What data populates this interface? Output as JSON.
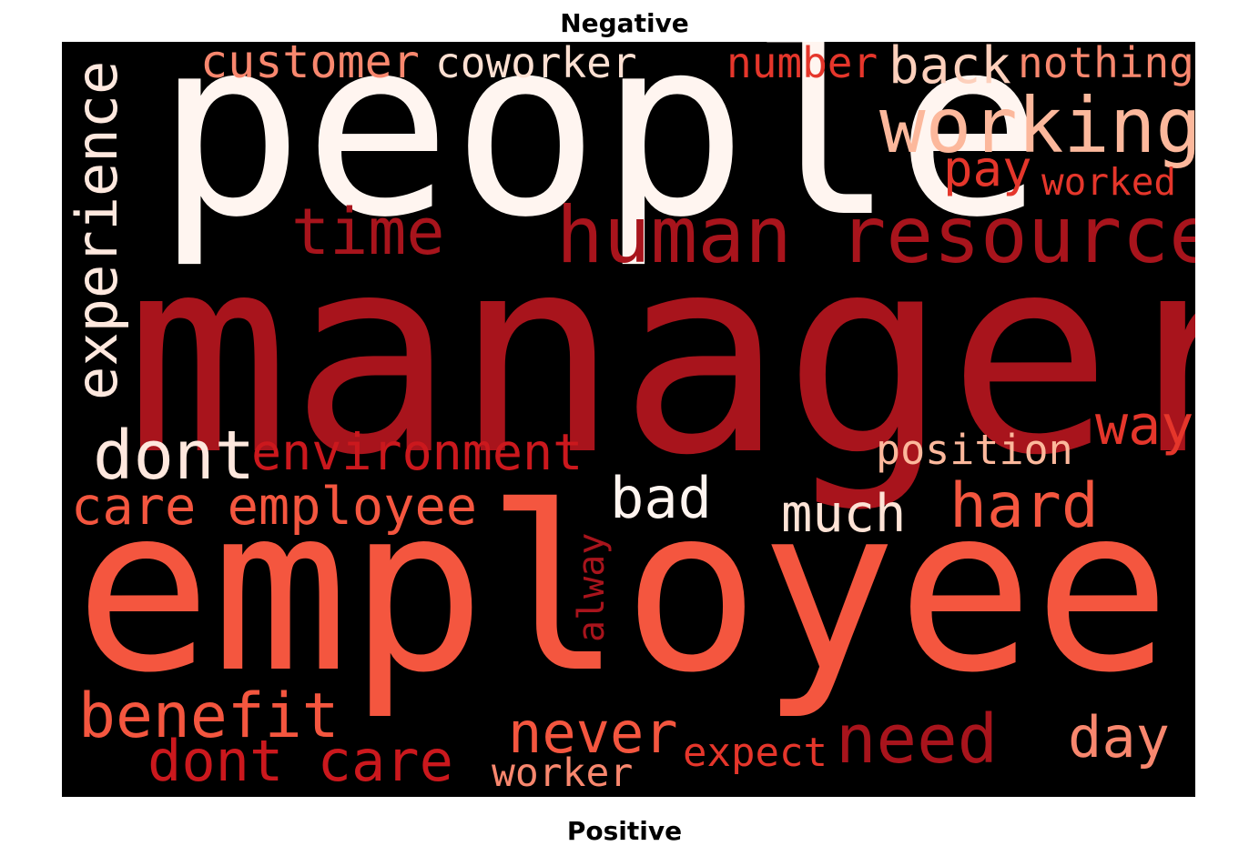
{
  "titles": {
    "top": "Negative",
    "bottom": "Positive"
  },
  "colors": {
    "figure_background": "#ffffff",
    "cloud_background": "#000000"
  },
  "wordcloud": {
    "colormap": "Reds",
    "words": [
      {
        "text": "people",
        "color": "#fff5f0"
      },
      {
        "text": "manager",
        "color": "#a8141c"
      },
      {
        "text": "employee",
        "color": "#f4563f"
      },
      {
        "text": "human resource",
        "color": "#a8141c"
      },
      {
        "text": "working",
        "color": "#fcb89c"
      },
      {
        "text": "experience",
        "color": "#fee8de"
      },
      {
        "text": "customer",
        "color": "#f8876e"
      },
      {
        "text": "coworker",
        "color": "#fde0d2"
      },
      {
        "text": "number",
        "color": "#e5362b"
      },
      {
        "text": "back",
        "color": "#fdd0bc"
      },
      {
        "text": "nothing",
        "color": "#f8876e"
      },
      {
        "text": "pay",
        "color": "#e5362b"
      },
      {
        "text": "worked",
        "color": "#e5362b"
      },
      {
        "text": "time",
        "color": "#a8141c"
      },
      {
        "text": "dont",
        "color": "#fee8de"
      },
      {
        "text": "environment",
        "color": "#cb181d"
      },
      {
        "text": "position",
        "color": "#fcb89c"
      },
      {
        "text": "way",
        "color": "#e5362b"
      },
      {
        "text": "care employee",
        "color": "#f4563f"
      },
      {
        "text": "bad",
        "color": "#fff5f0"
      },
      {
        "text": "much",
        "color": "#fee3d6"
      },
      {
        "text": "hard",
        "color": "#f4563f"
      },
      {
        "text": "alway",
        "color": "#a8141c"
      },
      {
        "text": "benefit",
        "color": "#f4563f"
      },
      {
        "text": "never",
        "color": "#f4563f"
      },
      {
        "text": "day",
        "color": "#f8876e"
      },
      {
        "text": "dont care",
        "color": "#cb181d"
      },
      {
        "text": "expect",
        "color": "#e5362b"
      },
      {
        "text": "need",
        "color": "#a8141c"
      },
      {
        "text": "worker",
        "color": "#f8876e"
      }
    ]
  }
}
